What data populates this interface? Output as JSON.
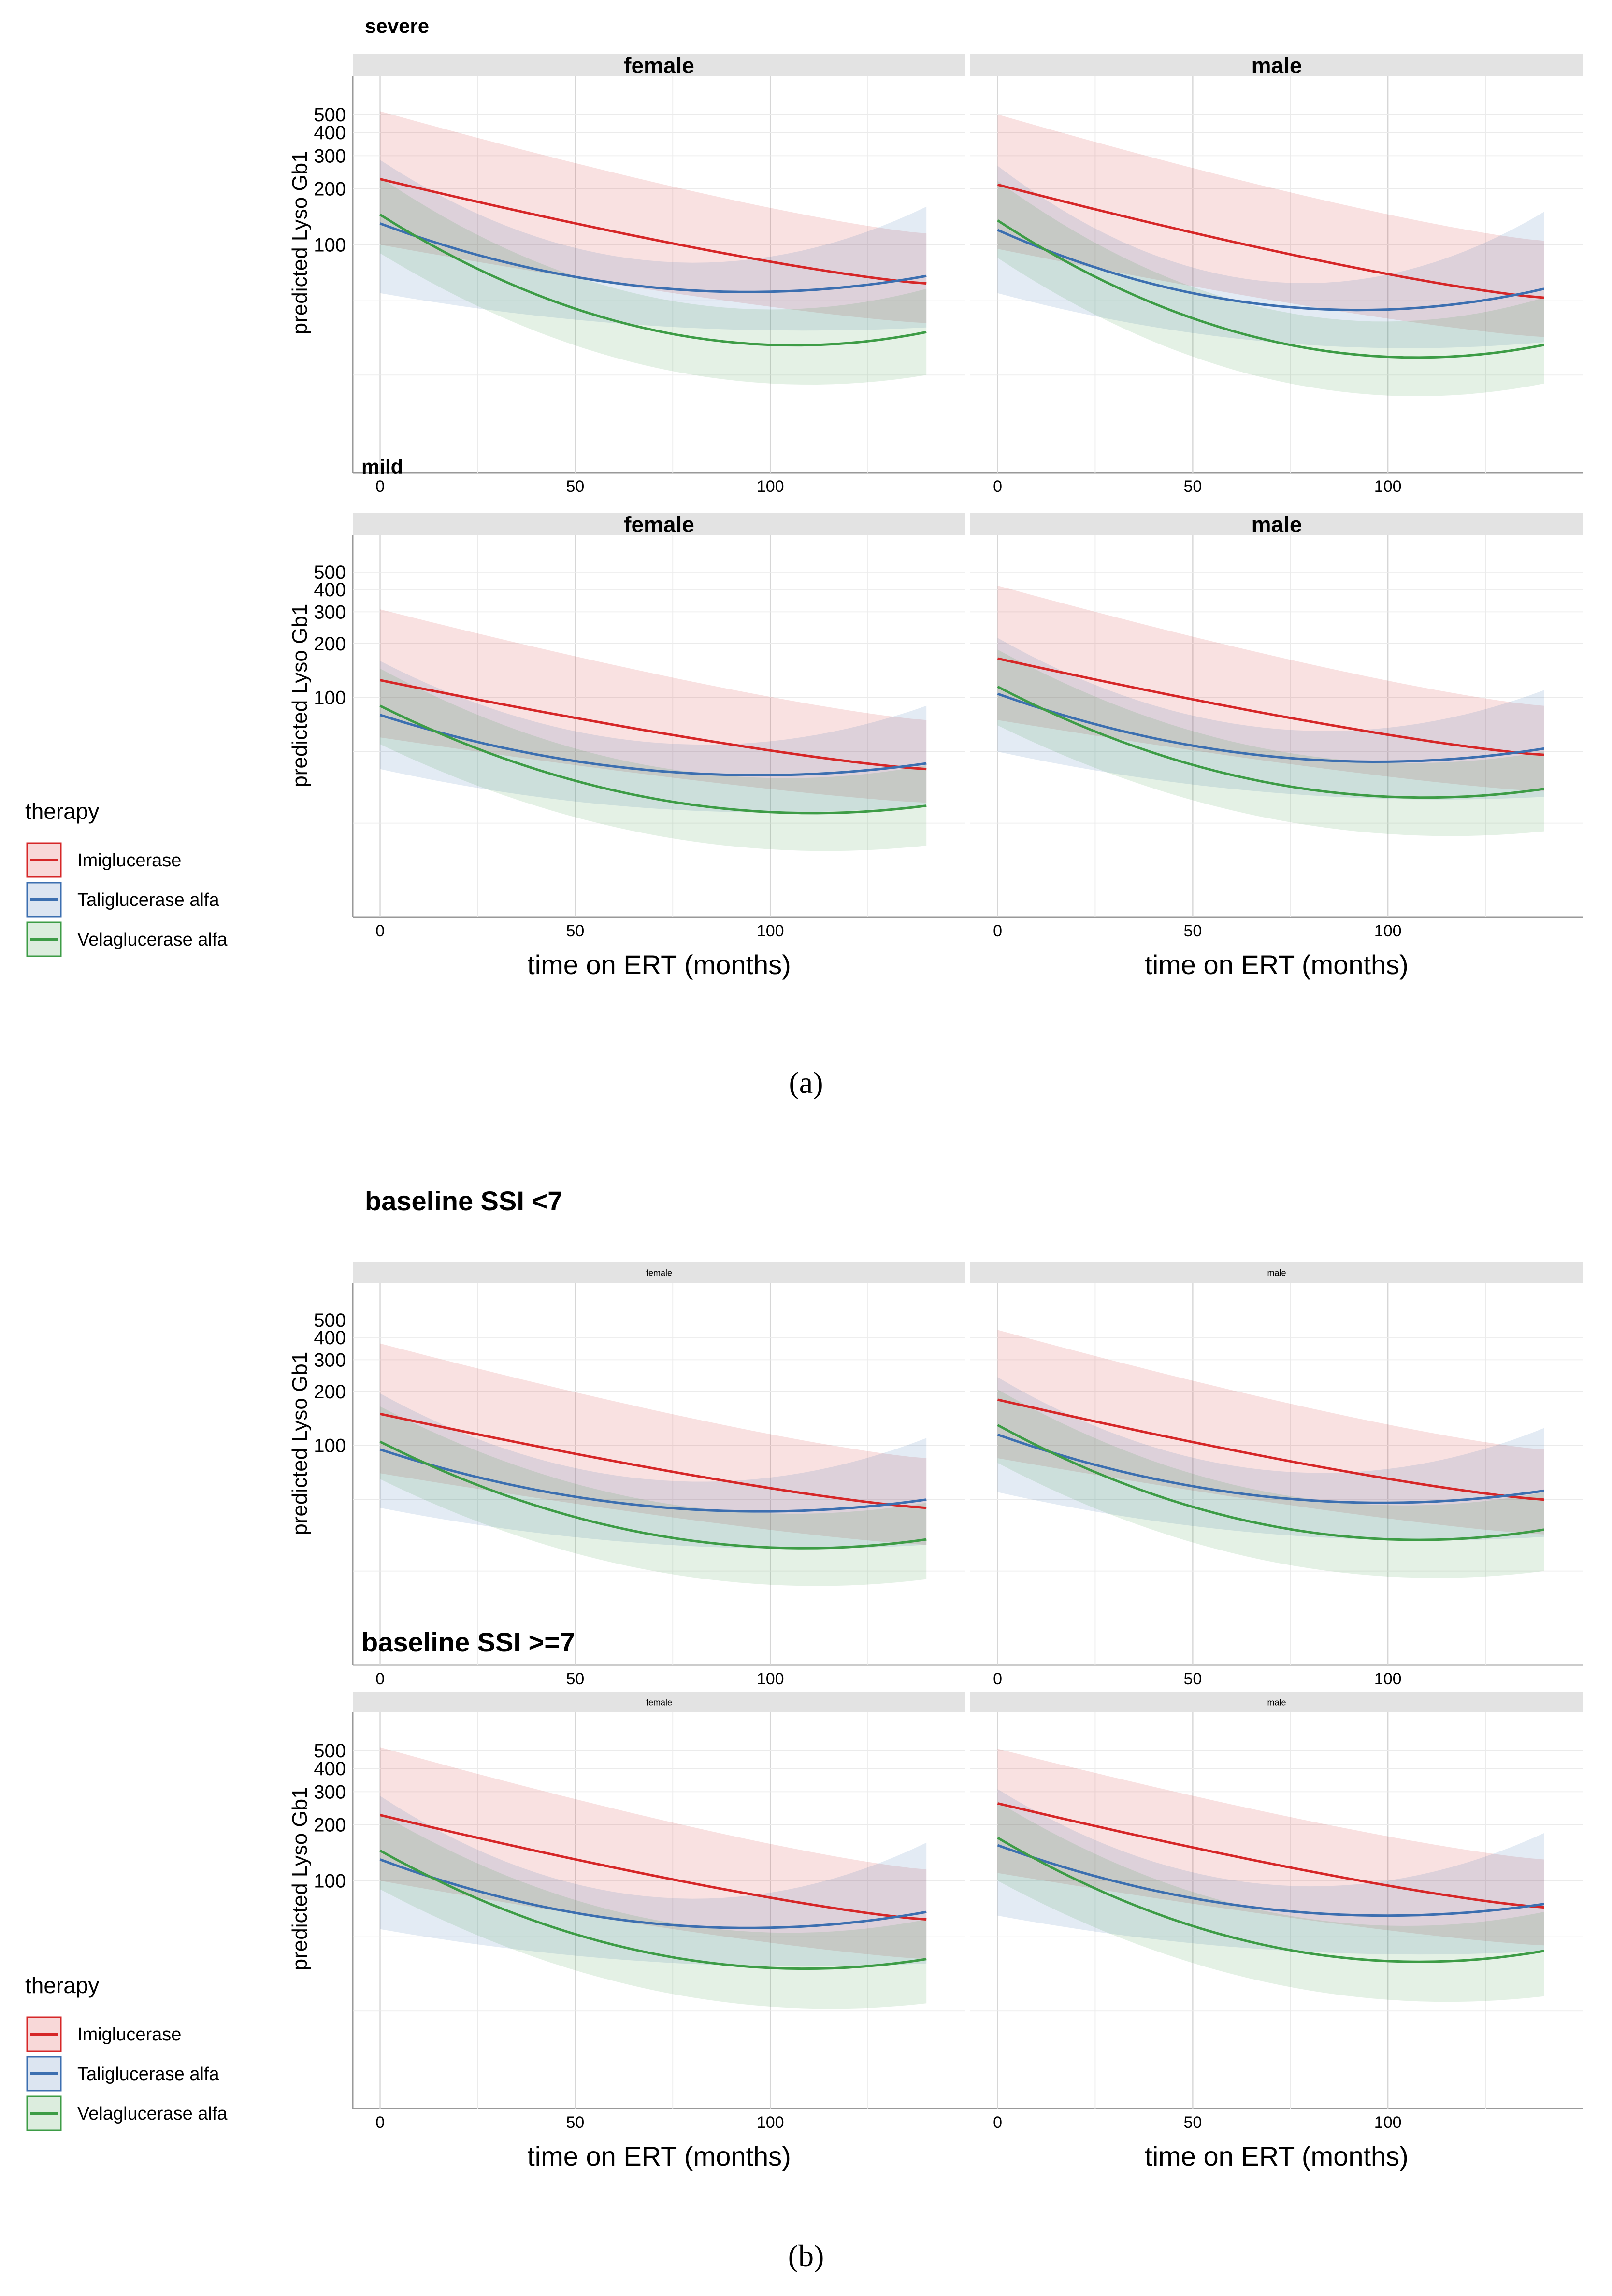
{
  "figure_a": {
    "label": "(a)",
    "row_titles": [
      "severe",
      "mild"
    ]
  },
  "figure_b": {
    "label": "(b)",
    "row_titles": [
      "baseline SSI <7",
      "baseline SSI >=7"
    ]
  },
  "colors": {
    "Imiglucerase": "#d62728",
    "Taliglucerase alfa": "#3c6fb0",
    "Velaglucerase alfa": "#3d9c46",
    "strip_bg": "#e3e3e3",
    "panel_bg": "#ffffff"
  },
  "legend": {
    "title": "therapy",
    "items": [
      "Imiglucerase",
      "Taliglucerase alfa",
      "Velaglucerase alfa"
    ]
  },
  "chart_data": [
    {
      "type": "line",
      "id": "a_severe",
      "title": "severe",
      "facets": [
        "female",
        "male"
      ],
      "xlabel": "time on ERT (months)",
      "ylabel": "predicted Lyso Gb1",
      "xlim": [
        -7,
        150
      ],
      "ylim": [
        6,
        800
      ],
      "yscale": "log",
      "x_ticks": [
        0,
        50,
        100
      ],
      "y_ticks": [
        100,
        200,
        300,
        400,
        500
      ],
      "x": [
        0,
        140
      ],
      "series": [
        {
          "name": "Imiglucerase",
          "panels": [
            {
              "facet": "female",
              "start": 225,
              "end": 62,
              "lower_start": 100,
              "upper_start": 520,
              "lower_end": 38,
              "upper_end": 115
            },
            {
              "facet": "male",
              "start": 210,
              "end": 52,
              "lower_start": 95,
              "upper_start": 500,
              "lower_end": 32,
              "upper_end": 105
            }
          ]
        },
        {
          "name": "Taliglucerase alfa",
          "panels": [
            {
              "facet": "female",
              "start": 130,
              "min": 56,
              "end": 68,
              "lower_start": 55,
              "upper_start": 285,
              "lower_end": 36,
              "upper_end": 160
            },
            {
              "facet": "male",
              "start": 120,
              "min": 45,
              "end": 58,
              "lower_start": 55,
              "upper_start": 265,
              "lower_end": 30,
              "upper_end": 150
            }
          ]
        },
        {
          "name": "Velaglucerase alfa",
          "panels": [
            {
              "facet": "female",
              "start": 145,
              "min": 29,
              "end": 34,
              "lower_start": 90,
              "upper_start": 230,
              "lower_end": 20,
              "upper_end": 58
            },
            {
              "facet": "male",
              "start": 135,
              "min": 25,
              "end": 29,
              "lower_start": 85,
              "upper_start": 220,
              "lower_end": 18,
              "upper_end": 52
            }
          ]
        }
      ]
    },
    {
      "type": "line",
      "id": "a_mild",
      "title": "mild",
      "facets": [
        "female",
        "male"
      ],
      "xlabel": "time on ERT (months)",
      "ylabel": "predicted Lyso Gb1",
      "xlim": [
        -7,
        150
      ],
      "ylim": [
        6,
        800
      ],
      "yscale": "log",
      "x_ticks": [
        0,
        50,
        100
      ],
      "y_ticks": [
        100,
        200,
        300,
        400,
        500
      ],
      "x": [
        0,
        140
      ],
      "series": [
        {
          "name": "Imiglucerase",
          "panels": [
            {
              "facet": "female",
              "start": 125,
              "end": 40,
              "lower_start": 60,
              "upper_start": 310,
              "lower_end": 26,
              "upper_end": 75
            },
            {
              "facet": "male",
              "start": 165,
              "end": 48,
              "lower_start": 75,
              "upper_start": 420,
              "lower_end": 30,
              "upper_end": 90
            }
          ]
        },
        {
          "name": "Taliglucerase alfa",
          "panels": [
            {
              "facet": "female",
              "start": 80,
              "min": 37,
              "end": 43,
              "lower_start": 40,
              "upper_start": 160,
              "lower_end": 25,
              "upper_end": 90
            },
            {
              "facet": "male",
              "start": 105,
              "min": 44,
              "end": 52,
              "lower_start": 50,
              "upper_start": 215,
              "lower_end": 28,
              "upper_end": 110
            }
          ]
        },
        {
          "name": "Velaglucerase alfa",
          "panels": [
            {
              "facet": "female",
              "start": 90,
              "min": 23,
              "end": 25,
              "lower_start": 55,
              "upper_start": 145,
              "lower_end": 15,
              "upper_end": 42
            },
            {
              "facet": "male",
              "start": 115,
              "min": 28,
              "end": 31,
              "lower_start": 70,
              "upper_start": 185,
              "lower_end": 18,
              "upper_end": 50
            }
          ]
        }
      ]
    },
    {
      "type": "line",
      "id": "b_ssi_lt7",
      "title": "baseline SSI <7",
      "facets": [
        "female",
        "male"
      ],
      "xlabel": "time on ERT (months)",
      "ylabel": "predicted Lyso Gb1",
      "xlim": [
        -7,
        150
      ],
      "ylim": [
        6,
        800
      ],
      "yscale": "log",
      "x_ticks": [
        0,
        50,
        100
      ],
      "y_ticks": [
        100,
        200,
        300,
        400,
        500
      ],
      "x": [
        0,
        140
      ],
      "series": [
        {
          "name": "Imiglucerase",
          "panels": [
            {
              "facet": "female",
              "start": 150,
              "end": 45,
              "lower_start": 70,
              "upper_start": 370,
              "lower_end": 28,
              "upper_end": 85
            },
            {
              "facet": "male",
              "start": 180,
              "end": 50,
              "lower_start": 85,
              "upper_start": 440,
              "lower_end": 32,
              "upper_end": 95
            }
          ]
        },
        {
          "name": "Taliglucerase alfa",
          "panels": [
            {
              "facet": "female",
              "start": 95,
              "min": 43,
              "end": 50,
              "lower_start": 45,
              "upper_start": 195,
              "lower_end": 28,
              "upper_end": 110
            },
            {
              "facet": "male",
              "start": 115,
              "min": 48,
              "end": 56,
              "lower_start": 55,
              "upper_start": 240,
              "lower_end": 31,
              "upper_end": 125
            }
          ]
        },
        {
          "name": "Velaglucerase alfa",
          "panels": [
            {
              "facet": "female",
              "start": 105,
              "min": 27,
              "end": 30,
              "lower_start": 65,
              "upper_start": 165,
              "lower_end": 18,
              "upper_end": 48
            },
            {
              "facet": "male",
              "start": 130,
              "min": 30,
              "end": 34,
              "lower_start": 80,
              "upper_start": 205,
              "lower_end": 20,
              "upper_end": 55
            }
          ]
        }
      ]
    },
    {
      "type": "line",
      "id": "b_ssi_ge7",
      "title": "baseline SSI >=7",
      "facets": [
        "female",
        "male"
      ],
      "xlabel": "time on ERT (months)",
      "ylabel": "predicted Lyso Gb1",
      "xlim": [
        -7,
        150
      ],
      "ylim": [
        6,
        800
      ],
      "yscale": "log",
      "x_ticks": [
        0,
        50,
        100
      ],
      "y_ticks": [
        100,
        200,
        300,
        400,
        500
      ],
      "x": [
        0,
        140
      ],
      "series": [
        {
          "name": "Imiglucerase",
          "panels": [
            {
              "facet": "female",
              "start": 225,
              "end": 62,
              "lower_start": 100,
              "upper_start": 520,
              "lower_end": 38,
              "upper_end": 115
            },
            {
              "facet": "male",
              "start": 260,
              "end": 72,
              "lower_start": 110,
              "upper_start": 510,
              "lower_end": 45,
              "upper_end": 130
            }
          ]
        },
        {
          "name": "Taliglucerase alfa",
          "panels": [
            {
              "facet": "female",
              "start": 130,
              "min": 56,
              "end": 68,
              "lower_start": 55,
              "upper_start": 285,
              "lower_end": 36,
              "upper_end": 160
            },
            {
              "facet": "male",
              "start": 155,
              "min": 65,
              "end": 75,
              "lower_start": 65,
              "upper_start": 310,
              "lower_end": 42,
              "upper_end": 180
            }
          ]
        },
        {
          "name": "Velaglucerase alfa",
          "panels": [
            {
              "facet": "female",
              "start": 145,
              "min": 34,
              "end": 38,
              "lower_start": 90,
              "upper_start": 230,
              "lower_end": 22,
              "upper_end": 62
            },
            {
              "facet": "male",
              "start": 170,
              "min": 37,
              "end": 42,
              "lower_start": 100,
              "upper_start": 265,
              "lower_end": 24,
              "upper_end": 68
            }
          ]
        }
      ]
    }
  ]
}
